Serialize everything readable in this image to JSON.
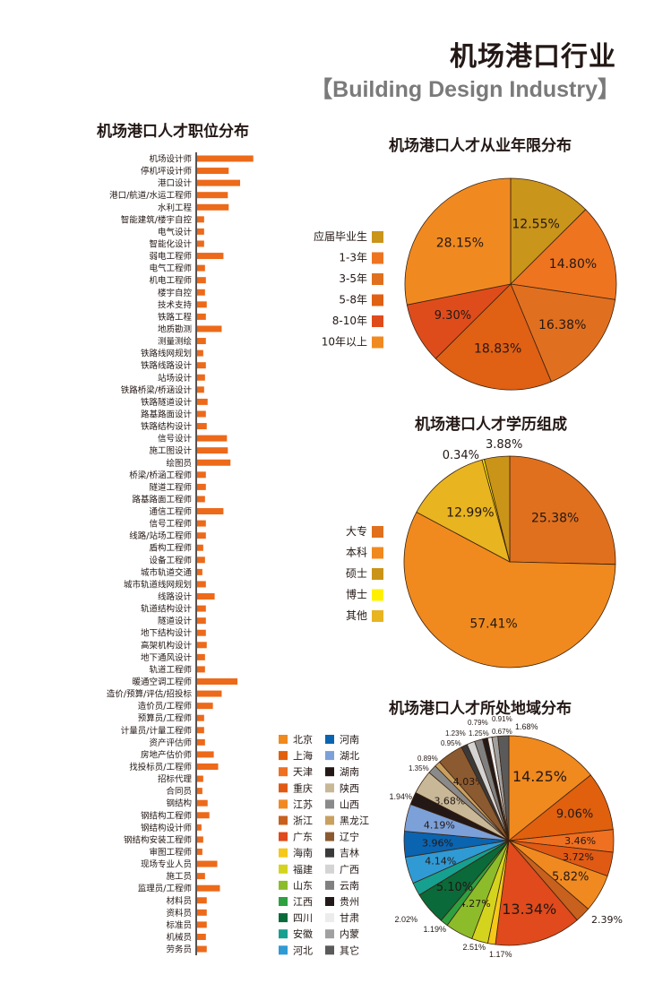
{
  "header": {
    "title": "机场港口行业",
    "subtitle": "【Building Design Industry】"
  },
  "chart_data": [
    {
      "type": "bar",
      "orientation": "horizontal",
      "title": "机场港口人才职位分布",
      "grid": false,
      "bar_color": "#ec6a1a",
      "categories": [
        "机场设计师",
        "停机坪设计师",
        "港口设计",
        "港口/航道/水运工程师",
        "水利工程",
        "智能建筑/楼宇自控",
        "电气设计",
        "智能化设计",
        "弱电工程师",
        "电气工程师",
        "机电工程师",
        "楼宇自控",
        "技术支持",
        "铁路工程",
        "地质勘测",
        "测量测绘",
        "铁路线网规划",
        "铁路线路设计",
        "站场设计",
        "铁路桥梁/桥涵设计",
        "铁路隧道设计",
        "路基路面设计",
        "铁路结构设计",
        "信号设计",
        "施工图设计",
        "绘图员",
        "桥梁/桥涵工程师",
        "隧道工程师",
        "路基路面工程师",
        "通信工程师",
        "信号工程师",
        "线路/站场工程师",
        "盾构工程师",
        "设备工程师",
        "城市轨道交通",
        "城市轨道线网规划",
        "线路设计",
        "轨道结构设计",
        "隧道设计",
        "地下结构设计",
        "高架机构设计",
        "地下通风设计",
        "轨道工程师",
        "暖通空调工程师",
        "造价/预算/评估/招投标",
        "造价员/工程师",
        "预算员/工程师",
        "计量员/计量工程师",
        "资产评估师",
        "房地产估价师",
        "找投标员/工程师",
        "招标代理",
        "合同员",
        "钢结构",
        "钢结构工程师",
        "钢结构设计师",
        "钢结构安装工程师",
        "审图工程师",
        "现场专业人员",
        "施工员",
        "监理员/工程师",
        "材料员",
        "资料员",
        "标准员",
        "机械员",
        "劳务员"
      ],
      "values": [
        64,
        36,
        49,
        35,
        36,
        8,
        8,
        8,
        30,
        9,
        10,
        9,
        11,
        10,
        28,
        10,
        7,
        10,
        9,
        8,
        12,
        10,
        11,
        34,
        35,
        38,
        10,
        10,
        9,
        30,
        10,
        10,
        7,
        9,
        6,
        10,
        20,
        10,
        10,
        10,
        11,
        9,
        9,
        46,
        28,
        18,
        8,
        8,
        9,
        19,
        24,
        7,
        6,
        12,
        14,
        5,
        7,
        6,
        23,
        9,
        26,
        11,
        11,
        11,
        10,
        11
      ]
    },
    {
      "type": "pie",
      "title": "机场港口人才从业年限分布",
      "legend": "left",
      "slices": [
        {
          "name": "应届毕业生",
          "value": 12.55,
          "label": "12.55%",
          "color": "#c9951a"
        },
        {
          "name": "1-3年",
          "value": 14.8,
          "label": "14.80%",
          "color": "#ee7420"
        },
        {
          "name": "3-5年",
          "value": 16.38,
          "label": "16.38%",
          "color": "#e07020"
        },
        {
          "name": "5-8年",
          "value": 18.83,
          "label": "18.83%",
          "color": "#e06014"
        },
        {
          "name": "8-10年",
          "value": 9.3,
          "label": "9.30%",
          "color": "#df4c1c"
        },
        {
          "name": "10年以上",
          "value": 28.15,
          "label": "28.15%",
          "color": "#f08a20"
        }
      ]
    },
    {
      "type": "pie",
      "title": "机场港口人才学历组成",
      "legend": "left",
      "slices": [
        {
          "name": "大专",
          "value": 25.38,
          "label": "25.38%",
          "color": "#e0701e"
        },
        {
          "name": "本科",
          "value": 57.41,
          "label": "57.41%",
          "color": "#f08a1e"
        },
        {
          "name": "其他",
          "value": 12.99,
          "label": "12.99%",
          "color": "#e8b420"
        },
        {
          "name": "博士",
          "value": 0.34,
          "label": "0.34%",
          "color": "#fff000"
        },
        {
          "name": "硕士",
          "value": 3.88,
          "label": "3.88%",
          "color": "#c99418"
        }
      ],
      "legend_order": [
        "大专",
        "本科",
        "硕士",
        "博士",
        "其他"
      ]
    },
    {
      "type": "pie",
      "title": "机场港口人才所处地域分布",
      "legend": "left",
      "slices": [
        {
          "name": "北京",
          "value": 14.25,
          "label": "14.25%",
          "color": "#f0891e"
        },
        {
          "name": "上海",
          "value": 9.06,
          "label": "9.06%",
          "color": "#e0600e"
        },
        {
          "name": "天津",
          "value": 3.46,
          "label": "3.46%",
          "color": "#ee7020"
        },
        {
          "name": "重庆",
          "value": 3.72,
          "label": "3.72%",
          "color": "#e05a14"
        },
        {
          "name": "江苏",
          "value": 5.82,
          "label": "5.82%",
          "color": "#f08a20"
        },
        {
          "name": "浙江",
          "value": 2.39,
          "label": "2.39%",
          "color": "#c8601e"
        },
        {
          "name": "广东",
          "value": 13.34,
          "label": "13.34%",
          "color": "#e04a1c"
        },
        {
          "name": "海南",
          "value": 1.17,
          "label": "1.17%",
          "color": "#f5c81a"
        },
        {
          "name": "福建",
          "value": 2.51,
          "label": "2.51%",
          "color": "#d4d41e"
        },
        {
          "name": "山东",
          "value": 4.27,
          "label": "4.27%",
          "color": "#8cbc2a"
        },
        {
          "name": "江西",
          "value": 1.19,
          "label": "1.19%",
          "color": "#2ea040"
        },
        {
          "name": "四川",
          "value": 5.1,
          "label": "5.10%",
          "color": "#0a6a3a"
        },
        {
          "name": "安徽",
          "value": 2.02,
          "label": "2.02%",
          "color": "#16a090"
        },
        {
          "name": "河北",
          "value": 4.14,
          "label": "4.14%",
          "color": "#309ad4"
        },
        {
          "name": "河南",
          "value": 3.96,
          "label": "3.96%",
          "color": "#0a64b0"
        },
        {
          "name": "湖北",
          "value": 4.19,
          "label": "4.19%",
          "color": "#7ca0d8"
        },
        {
          "name": "湖南",
          "value": 1.94,
          "label": "1.94%",
          "color": "#231815"
        },
        {
          "name": "陕西",
          "value": 3.68,
          "label": "3.68%",
          "color": "#c8b898"
        },
        {
          "name": "山西",
          "value": 1.35,
          "label": "1.35%",
          "color": "#8a8a8a"
        },
        {
          "name": "黑龙江",
          "value": 0.89,
          "label": "0.89%",
          "color": "#c8a060"
        },
        {
          "name": "辽宁",
          "value": 4.03,
          "label": "4.03%",
          "color": "#8c5a30"
        },
        {
          "name": "吉林",
          "value": 0.95,
          "label": "0.95%",
          "color": "#3a3a3a"
        },
        {
          "name": "广西",
          "value": 1.23,
          "label": "1.23%",
          "color": "#d4d4d4"
        },
        {
          "name": "云南",
          "value": 1.25,
          "label": "1.25%",
          "color": "#808080"
        },
        {
          "name": "贵州",
          "value": 0.79,
          "label": "0.79%",
          "color": "#221a18"
        },
        {
          "name": "甘肃",
          "value": 0.67,
          "label": "0.67%",
          "color": "#ececec"
        },
        {
          "name": "内蒙",
          "value": 0.91,
          "label": "0.91%",
          "color": "#a0a0a0"
        },
        {
          "name": "其它",
          "value": 1.68,
          "label": "1.68%",
          "color": "#5a5a5a"
        }
      ]
    }
  ]
}
